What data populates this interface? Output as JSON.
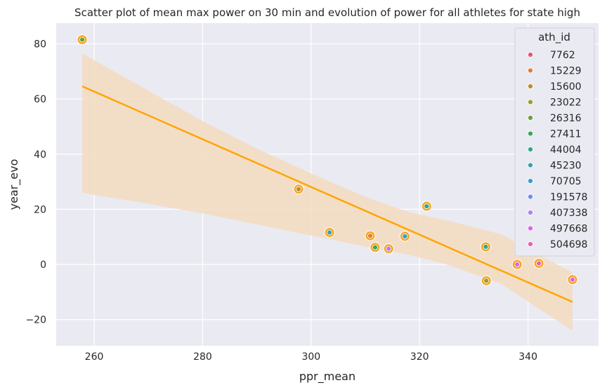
{
  "chart_data": {
    "type": "scatter",
    "title": "Scatter plot of mean max power on 30 min and evolution of power for all athletes for state high",
    "xlabel": "ppr_mean",
    "ylabel": "year_evo",
    "xlim": [
      253,
      353
    ],
    "ylim": [
      -29.5,
      87.5
    ],
    "xticks": [
      260,
      280,
      300,
      320,
      340
    ],
    "yticks": [
      -20,
      0,
      20,
      40,
      60,
      80
    ],
    "xtick_labels": [
      "260",
      "280",
      "300",
      "320",
      "340"
    ],
    "ytick_labels": [
      "−20",
      "0",
      "20",
      "40",
      "60",
      "80"
    ],
    "grid": true,
    "legend_title": "ath_id",
    "legend_position": "top-right",
    "legend": [
      {
        "label": "7762",
        "color": "#e8556b"
      },
      {
        "label": "15229",
        "color": "#e37d38"
      },
      {
        "label": "15600",
        "color": "#bc8b2e"
      },
      {
        "label": "23022",
        "color": "#9c9c2c"
      },
      {
        "label": "26316",
        "color": "#6ba32f"
      },
      {
        "label": "27411",
        "color": "#33a85a"
      },
      {
        "label": "44004",
        "color": "#2aa88f"
      },
      {
        "label": "45230",
        "color": "#2fa4a9"
      },
      {
        "label": "70705",
        "color": "#2f9fcf"
      },
      {
        "label": "191578",
        "color": "#6c8ef0"
      },
      {
        "label": "407338",
        "color": "#b27ff0"
      },
      {
        "label": "497668",
        "color": "#e55fe8"
      },
      {
        "label": "504698",
        "color": "#e85fae"
      }
    ],
    "points": [
      {
        "x": 257.8,
        "y": 81.5,
        "color": "#6ba32f"
      },
      {
        "x": 297.7,
        "y": 27.3,
        "color": "#bc8b2e"
      },
      {
        "x": 303.4,
        "y": 11.6,
        "color": "#2fa4a9"
      },
      {
        "x": 310.9,
        "y": 10.4,
        "color": "#e37d38"
      },
      {
        "x": 311.8,
        "y": 6.2,
        "color": "#33a85a"
      },
      {
        "x": 314.3,
        "y": 5.7,
        "color": "#b27ff0"
      },
      {
        "x": 317.3,
        "y": 10.2,
        "color": "#2f9fcf"
      },
      {
        "x": 321.3,
        "y": 21.1,
        "color": "#2aa88f"
      },
      {
        "x": 332.2,
        "y": 6.4,
        "color": "#2aa88f"
      },
      {
        "x": 332.3,
        "y": -5.9,
        "color": "#9c9c2c"
      },
      {
        "x": 338.0,
        "y": 0.0,
        "color": "#e55fe8"
      },
      {
        "x": 342.0,
        "y": 0.4,
        "color": "#e85fae"
      },
      {
        "x": 348.2,
        "y": -5.5,
        "color": "#e55fe8"
      }
    ],
    "highlight_color": "#f5a623",
    "regression": {
      "color": "#ffa500",
      "x": [
        257.8,
        348.2
      ],
      "y": [
        64.6,
        -13.6
      ],
      "band": {
        "x": [
          257.8,
          270,
          280,
          290,
          300,
          310,
          318,
          325,
          335,
          348.2
        ],
        "upper": [
          76.5,
          63,
          52,
          42,
          33,
          24.5,
          19,
          16,
          11,
          -3
        ],
        "lower": [
          26,
          22,
          18.5,
          14.5,
          10.5,
          6.5,
          3.5,
          0,
          -7,
          -24
        ]
      },
      "band_color": "#f3dcbf"
    }
  }
}
